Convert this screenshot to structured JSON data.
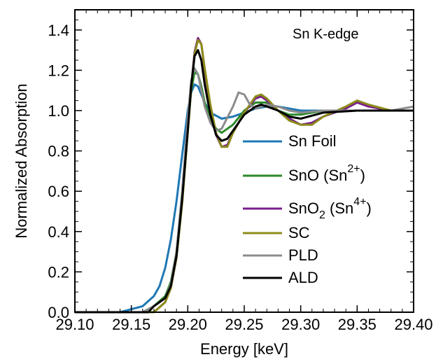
{
  "chart_data": {
    "type": "line",
    "title": "",
    "annotation": "Sn K-edge",
    "xlabel": "Energy [keV]",
    "ylabel": "Normalized Absorption",
    "xlim": [
      29.1,
      29.4
    ],
    "ylim": [
      0.0,
      1.5
    ],
    "xticks": [
      "29.10",
      "29.15",
      "29.20",
      "29.25",
      "29.30",
      "29.35",
      "29.40"
    ],
    "yticks": [
      "0.0",
      "0.2",
      "0.4",
      "0.6",
      "0.8",
      "1.0",
      "1.2",
      "1.4"
    ],
    "legend_position": "center-right",
    "series": [
      {
        "name": "Sn Foil",
        "color": "#1f78b4",
        "x": [
          29.1,
          29.14,
          29.16,
          29.17,
          29.175,
          29.18,
          29.185,
          29.19,
          29.195,
          29.2,
          29.203,
          29.206,
          29.209,
          29.212,
          29.215,
          29.22,
          29.23,
          29.24,
          29.25,
          29.26,
          29.27,
          29.28,
          29.3,
          29.32,
          29.35,
          29.38,
          29.4
        ],
        "y": [
          0.0,
          0.0,
          0.03,
          0.08,
          0.13,
          0.22,
          0.36,
          0.55,
          0.78,
          1.0,
          1.09,
          1.13,
          1.12,
          1.08,
          1.04,
          0.99,
          0.96,
          0.97,
          0.99,
          1.01,
          1.02,
          1.02,
          1.0,
          1.0,
          1.0,
          1.0,
          1.0
        ]
      },
      {
        "name": "SnO (Sn2+)",
        "label_main": "SnO (Sn",
        "label_sup": "2+",
        "label_tail": ")",
        "color": "#2a8a2a",
        "x": [
          29.1,
          29.16,
          29.17,
          29.18,
          29.185,
          29.19,
          29.195,
          29.2,
          29.203,
          29.206,
          29.209,
          29.212,
          29.215,
          29.22,
          29.225,
          29.23,
          29.24,
          29.25,
          29.26,
          29.27,
          29.28,
          29.29,
          29.3,
          29.32,
          29.35,
          29.38,
          29.4
        ],
        "y": [
          0.0,
          0.0,
          0.03,
          0.08,
          0.15,
          0.3,
          0.58,
          0.92,
          1.1,
          1.19,
          1.18,
          1.12,
          1.04,
          0.96,
          0.91,
          0.89,
          0.93,
          1.0,
          1.04,
          1.04,
          1.0,
          0.98,
          0.98,
          1.0,
          1.0,
          1.0,
          1.0
        ]
      },
      {
        "name": "SnO2 (Sn4+)",
        "label_main": "SnO",
        "label_sub": "2",
        "label_rest": " (Sn",
        "label_sup": "4+",
        "label_tail": ")",
        "color": "#7a1f8c",
        "x": [
          29.1,
          29.17,
          29.18,
          29.185,
          29.19,
          29.195,
          29.2,
          29.203,
          29.206,
          29.209,
          29.212,
          29.215,
          29.22,
          29.225,
          29.23,
          29.235,
          29.24,
          29.25,
          29.26,
          29.265,
          29.27,
          29.28,
          29.29,
          29.3,
          29.31,
          29.32,
          29.34,
          29.35,
          29.36,
          29.38,
          29.4
        ],
        "y": [
          0.0,
          0.0,
          0.05,
          0.12,
          0.27,
          0.55,
          0.9,
          1.12,
          1.29,
          1.36,
          1.33,
          1.2,
          1.02,
          0.88,
          0.82,
          0.83,
          0.89,
          0.99,
          1.06,
          1.07,
          1.05,
          1.0,
          0.96,
          0.93,
          0.94,
          0.97,
          1.01,
          1.04,
          1.02,
          1.0,
          1.0
        ]
      },
      {
        "name": "SC",
        "color": "#8c8c1a",
        "x": [
          29.1,
          29.17,
          29.18,
          29.185,
          29.19,
          29.195,
          29.2,
          29.203,
          29.206,
          29.209,
          29.212,
          29.215,
          29.22,
          29.225,
          29.23,
          29.235,
          29.24,
          29.25,
          29.26,
          29.265,
          29.27,
          29.28,
          29.29,
          29.3,
          29.31,
          29.32,
          29.34,
          29.35,
          29.36,
          29.38,
          29.4
        ],
        "y": [
          0.0,
          0.0,
          0.05,
          0.12,
          0.27,
          0.54,
          0.89,
          1.11,
          1.28,
          1.35,
          1.33,
          1.21,
          1.03,
          0.89,
          0.82,
          0.82,
          0.89,
          0.99,
          1.07,
          1.08,
          1.06,
          1.0,
          0.95,
          0.93,
          0.93,
          0.97,
          1.02,
          1.05,
          1.03,
          1.0,
          1.0
        ]
      },
      {
        "name": "PLD",
        "color": "#8c8c8c",
        "x": [
          29.1,
          29.16,
          29.17,
          29.18,
          29.185,
          29.19,
          29.195,
          29.2,
          29.203,
          29.206,
          29.209,
          29.212,
          29.215,
          29.22,
          29.225,
          29.23,
          29.24,
          29.245,
          29.25,
          29.255,
          29.26,
          29.27,
          29.28,
          29.29,
          29.3,
          29.32,
          29.35,
          29.38,
          29.4
        ],
        "y": [
          0.0,
          0.0,
          0.03,
          0.07,
          0.14,
          0.3,
          0.6,
          0.96,
          1.15,
          1.21,
          1.18,
          1.1,
          1.02,
          0.94,
          0.9,
          0.91,
          1.02,
          1.09,
          1.08,
          1.03,
          1.01,
          1.03,
          1.02,
          1.0,
          0.99,
          1.0,
          1.0,
          1.0,
          1.02
        ]
      },
      {
        "name": "ALD",
        "color": "#000000",
        "x": [
          29.1,
          29.165,
          29.17,
          29.18,
          29.185,
          29.19,
          29.195,
          29.2,
          29.203,
          29.206,
          29.209,
          29.212,
          29.215,
          29.22,
          29.225,
          29.23,
          29.235,
          29.24,
          29.25,
          29.26,
          29.265,
          29.27,
          29.28,
          29.29,
          29.3,
          29.32,
          29.35,
          29.38,
          29.4
        ],
        "y": [
          0.0,
          0.0,
          0.03,
          0.07,
          0.13,
          0.28,
          0.56,
          0.9,
          1.12,
          1.27,
          1.3,
          1.25,
          1.13,
          0.98,
          0.88,
          0.85,
          0.86,
          0.9,
          0.98,
          1.02,
          1.03,
          1.02,
          1.0,
          0.97,
          0.96,
          0.99,
          1.0,
          1.0,
          1.0
        ]
      }
    ]
  }
}
